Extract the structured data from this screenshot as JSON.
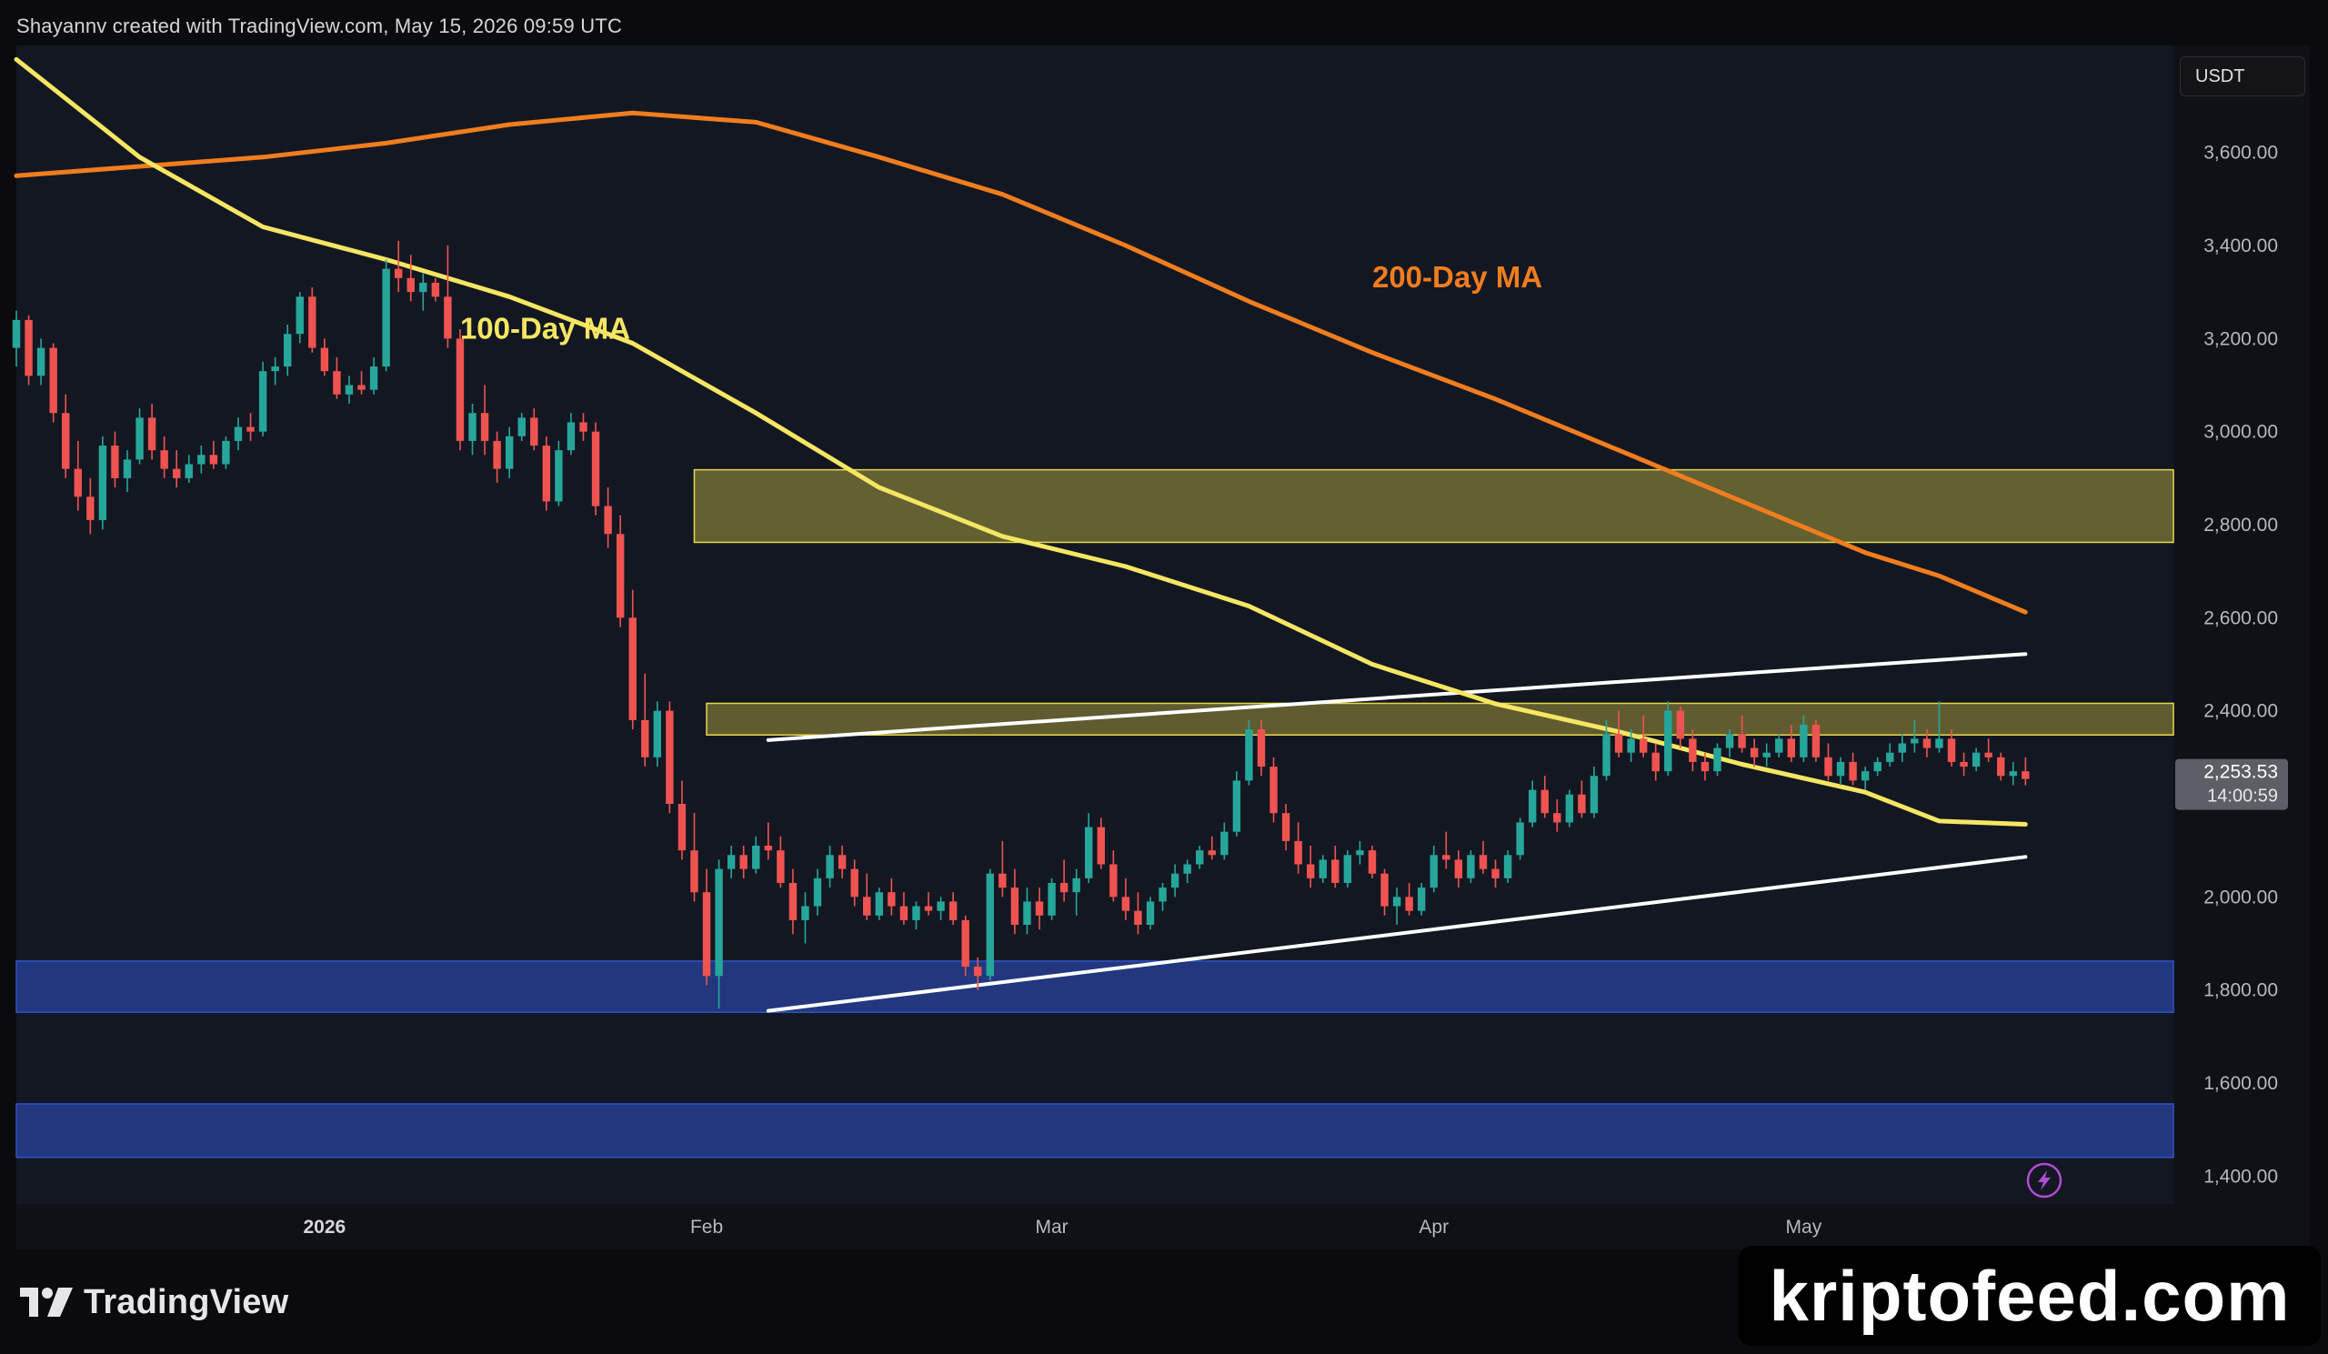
{
  "header": {
    "text": "Shayannv created with TradingView.com, May 15, 2026 09:59 UTC"
  },
  "currency": "USDT",
  "footer": {
    "brand": "TradingView"
  },
  "watermark": "kriptofeed.com",
  "colors": {
    "background": "#131722",
    "up": "#26a69a",
    "down": "#ef5350",
    "ma100": "#f5e663",
    "ma200": "#f07d1e",
    "supply_zone": "#e8d84a",
    "demand_zone": "#3052c9",
    "trendline": "#ffffff"
  },
  "chart_data": {
    "type": "candlestick",
    "instrument_currency": "USDT",
    "ylim": [
      1340,
      3830
    ],
    "x_range": [
      "2025-12-07",
      "2026-05-31"
    ],
    "y_ticks": [
      "3,600.00",
      "3,400.00",
      "3,200.00",
      "3,000.00",
      "2,800.00",
      "2,600.00",
      "2,400.00",
      "2,000.00",
      "1,800.00",
      "1,600.00",
      "1,400.00"
    ],
    "y_tick_values": [
      3600,
      3400,
      3200,
      3000,
      2800,
      2600,
      2400,
      2000,
      1800,
      1600,
      1400
    ],
    "x_ticks": [
      {
        "label": "2026",
        "date": "2026-01-01"
      },
      {
        "label": "Feb",
        "date": "2026-02-01"
      },
      {
        "label": "Mar",
        "date": "2026-03-01"
      },
      {
        "label": "Apr",
        "date": "2026-04-01"
      },
      {
        "label": "May",
        "date": "2026-05-01"
      }
    ],
    "last_price": {
      "label": "2,253.53",
      "value": 2253.53,
      "countdown": "14:00:59"
    },
    "annotations": [
      {
        "text": "100-Day MA",
        "color": "#f5e663",
        "date": "2026-01-12",
        "price": 3200
      },
      {
        "text": "200-Day MA",
        "color": "#f07d1e",
        "date": "2026-03-27",
        "price": 3310
      }
    ],
    "zones": [
      {
        "kind": "supply",
        "from": 2762,
        "to": 2918,
        "start": "2026-01-31"
      },
      {
        "kind": "resistance",
        "from": 2348,
        "to": 2416,
        "start": "2026-02-01"
      },
      {
        "kind": "demand",
        "from": 1752,
        "to": 1862,
        "start": "2025-12-07"
      },
      {
        "kind": "demand",
        "from": 1440,
        "to": 1555,
        "start": "2025-12-07"
      }
    ],
    "trendlines": [
      {
        "from": {
          "date": "2026-02-06",
          "price": 2337
        },
        "to": {
          "date": "2026-05-19",
          "price": 2522
        }
      },
      {
        "from": {
          "date": "2026-02-06",
          "price": 1755
        },
        "to": {
          "date": "2026-05-19",
          "price": 2086
        }
      }
    ],
    "ma100": [
      [
        "2025-12-07",
        3800
      ],
      [
        "2025-12-17",
        3590
      ],
      [
        "2025-12-27",
        3440
      ],
      [
        "2026-01-06",
        3370
      ],
      [
        "2026-01-16",
        3290
      ],
      [
        "2026-01-26",
        3190
      ],
      [
        "2026-02-05",
        3040
      ],
      [
        "2026-02-15",
        2880
      ],
      [
        "2026-02-25",
        2775
      ],
      [
        "2026-03-07",
        2710
      ],
      [
        "2026-03-17",
        2625
      ],
      [
        "2026-03-27",
        2500
      ],
      [
        "2026-04-06",
        2415
      ],
      [
        "2026-04-16",
        2355
      ],
      [
        "2026-04-26",
        2285
      ],
      [
        "2026-05-06",
        2225
      ],
      [
        "2026-05-12",
        2163
      ],
      [
        "2026-05-19",
        2156
      ]
    ],
    "ma200": [
      [
        "2025-12-07",
        3550
      ],
      [
        "2025-12-17",
        3570
      ],
      [
        "2025-12-27",
        3590
      ],
      [
        "2026-01-06",
        3620
      ],
      [
        "2026-01-16",
        3660
      ],
      [
        "2026-01-26",
        3685
      ],
      [
        "2026-02-05",
        3665
      ],
      [
        "2026-02-15",
        3590
      ],
      [
        "2026-02-25",
        3510
      ],
      [
        "2026-03-07",
        3400
      ],
      [
        "2026-03-17",
        3280
      ],
      [
        "2026-03-27",
        3170
      ],
      [
        "2026-04-06",
        3070
      ],
      [
        "2026-04-16",
        2960
      ],
      [
        "2026-04-26",
        2850
      ],
      [
        "2026-05-06",
        2740
      ],
      [
        "2026-05-12",
        2690
      ],
      [
        "2026-05-19",
        2612
      ]
    ],
    "candles": [
      [
        "2025-12-07",
        3180,
        3260,
        3140,
        3240
      ],
      [
        "2025-12-08",
        3240,
        3250,
        3100,
        3120
      ],
      [
        "2025-12-09",
        3120,
        3200,
        3100,
        3180
      ],
      [
        "2025-12-10",
        3180,
        3190,
        3020,
        3040
      ],
      [
        "2025-12-11",
        3040,
        3080,
        2900,
        2920
      ],
      [
        "2025-12-12",
        2920,
        2980,
        2830,
        2860
      ],
      [
        "2025-12-13",
        2860,
        2900,
        2780,
        2810
      ],
      [
        "2025-12-14",
        2810,
        2990,
        2790,
        2970
      ],
      [
        "2025-12-15",
        2970,
        3000,
        2880,
        2900
      ],
      [
        "2025-12-16",
        2900,
        2960,
        2870,
        2940
      ],
      [
        "2025-12-17",
        2940,
        3050,
        2930,
        3030
      ],
      [
        "2025-12-18",
        3030,
        3060,
        2940,
        2960
      ],
      [
        "2025-12-19",
        2960,
        2990,
        2900,
        2920
      ],
      [
        "2025-12-20",
        2920,
        2960,
        2880,
        2900
      ],
      [
        "2025-12-21",
        2900,
        2950,
        2890,
        2930
      ],
      [
        "2025-12-22",
        2930,
        2970,
        2910,
        2950
      ],
      [
        "2025-12-23",
        2950,
        2980,
        2920,
        2930
      ],
      [
        "2025-12-24",
        2930,
        2990,
        2920,
        2980
      ],
      [
        "2025-12-25",
        2980,
        3030,
        2960,
        3010
      ],
      [
        "2025-12-26",
        3010,
        3040,
        2980,
        3000
      ],
      [
        "2025-12-27",
        3000,
        3150,
        2990,
        3130
      ],
      [
        "2025-12-28",
        3130,
        3160,
        3100,
        3140
      ],
      [
        "2025-12-29",
        3140,
        3230,
        3120,
        3210
      ],
      [
        "2025-12-30",
        3210,
        3300,
        3190,
        3290
      ],
      [
        "2025-12-31",
        3290,
        3310,
        3170,
        3180
      ],
      [
        "2026-01-01",
        3180,
        3200,
        3120,
        3130
      ],
      [
        "2026-01-02",
        3130,
        3160,
        3070,
        3080
      ],
      [
        "2026-01-03",
        3080,
        3120,
        3060,
        3100
      ],
      [
        "2026-01-04",
        3100,
        3130,
        3080,
        3090
      ],
      [
        "2026-01-05",
        3090,
        3160,
        3080,
        3140
      ],
      [
        "2026-01-06",
        3140,
        3370,
        3130,
        3350
      ],
      [
        "2026-01-07",
        3350,
        3410,
        3300,
        3330
      ],
      [
        "2026-01-08",
        3330,
        3380,
        3280,
        3300
      ],
      [
        "2026-01-09",
        3300,
        3340,
        3260,
        3320
      ],
      [
        "2026-01-10",
        3320,
        3330,
        3280,
        3290
      ],
      [
        "2026-01-11",
        3290,
        3400,
        3180,
        3200
      ],
      [
        "2026-01-12",
        3200,
        3220,
        2960,
        2980
      ],
      [
        "2026-01-13",
        2980,
        3060,
        2950,
        3040
      ],
      [
        "2026-01-14",
        3040,
        3100,
        2950,
        2980
      ],
      [
        "2026-01-15",
        2980,
        3000,
        2890,
        2920
      ],
      [
        "2026-01-16",
        2920,
        3010,
        2900,
        2990
      ],
      [
        "2026-01-17",
        2990,
        3040,
        2980,
        3030
      ],
      [
        "2026-01-18",
        3030,
        3050,
        2960,
        2970
      ],
      [
        "2026-01-19",
        2970,
        2990,
        2830,
        2850
      ],
      [
        "2026-01-20",
        2850,
        2980,
        2840,
        2960
      ],
      [
        "2026-01-21",
        2960,
        3040,
        2950,
        3020
      ],
      [
        "2026-01-22",
        3020,
        3040,
        2980,
        3000
      ],
      [
        "2026-01-23",
        3000,
        3020,
        2820,
        2840
      ],
      [
        "2026-01-24",
        2840,
        2880,
        2750,
        2780
      ],
      [
        "2026-01-25",
        2780,
        2820,
        2580,
        2600
      ],
      [
        "2026-01-26",
        2600,
        2660,
        2360,
        2380
      ],
      [
        "2026-01-27",
        2380,
        2480,
        2280,
        2300
      ],
      [
        "2026-01-28",
        2300,
        2420,
        2280,
        2400
      ],
      [
        "2026-01-29",
        2400,
        2420,
        2180,
        2200
      ],
      [
        "2026-01-30",
        2200,
        2250,
        2080,
        2100
      ],
      [
        "2026-01-31",
        2100,
        2180,
        1990,
        2010
      ],
      [
        "2026-02-01",
        2010,
        2060,
        1810,
        1830
      ],
      [
        "2026-02-02",
        1830,
        2080,
        1760,
        2060
      ],
      [
        "2026-02-03",
        2060,
        2110,
        2040,
        2090
      ],
      [
        "2026-02-04",
        2090,
        2110,
        2040,
        2060
      ],
      [
        "2026-02-05",
        2060,
        2130,
        2050,
        2110
      ],
      [
        "2026-02-06",
        2110,
        2160,
        2080,
        2100
      ],
      [
        "2026-02-07",
        2100,
        2130,
        2020,
        2030
      ],
      [
        "2026-02-08",
        2030,
        2060,
        1920,
        1950
      ],
      [
        "2026-02-09",
        1950,
        2010,
        1900,
        1980
      ],
      [
        "2026-02-10",
        1980,
        2060,
        1960,
        2040
      ],
      [
        "2026-02-11",
        2040,
        2110,
        2020,
        2090
      ],
      [
        "2026-02-12",
        2090,
        2110,
        2040,
        2060
      ],
      [
        "2026-02-13",
        2060,
        2080,
        1980,
        2000
      ],
      [
        "2026-02-14",
        2000,
        2050,
        1950,
        1960
      ],
      [
        "2026-02-15",
        1960,
        2020,
        1950,
        2010
      ],
      [
        "2026-02-16",
        2010,
        2040,
        1960,
        1980
      ],
      [
        "2026-02-17",
        1980,
        2010,
        1940,
        1950
      ],
      [
        "2026-02-18",
        1950,
        1990,
        1930,
        1980
      ],
      [
        "2026-02-19",
        1980,
        2010,
        1960,
        1970
      ],
      [
        "2026-02-20",
        1970,
        2000,
        1950,
        1990
      ],
      [
        "2026-02-21",
        1990,
        2010,
        1940,
        1950
      ],
      [
        "2026-02-22",
        1950,
        1960,
        1830,
        1850
      ],
      [
        "2026-02-23",
        1850,
        1870,
        1800,
        1830
      ],
      [
        "2026-02-24",
        1830,
        2060,
        1820,
        2050
      ],
      [
        "2026-02-25",
        2050,
        2120,
        2000,
        2020
      ],
      [
        "2026-02-26",
        2020,
        2060,
        1920,
        1940
      ],
      [
        "2026-02-27",
        1940,
        2020,
        1920,
        1990
      ],
      [
        "2026-02-28",
        1990,
        2020,
        1930,
        1960
      ],
      [
        "2026-03-01",
        1960,
        2040,
        1950,
        2030
      ],
      [
        "2026-03-02",
        2030,
        2080,
        1990,
        2010
      ],
      [
        "2026-03-03",
        2010,
        2060,
        1960,
        2040
      ],
      [
        "2026-03-04",
        2040,
        2180,
        2030,
        2150
      ],
      [
        "2026-03-05",
        2150,
        2170,
        2060,
        2070
      ],
      [
        "2026-03-06",
        2070,
        2100,
        1990,
        2000
      ],
      [
        "2026-03-07",
        2000,
        2040,
        1950,
        1970
      ],
      [
        "2026-03-08",
        1970,
        2010,
        1920,
        1940
      ],
      [
        "2026-03-09",
        1940,
        2000,
        1930,
        1990
      ],
      [
        "2026-03-10",
        1990,
        2030,
        1970,
        2020
      ],
      [
        "2026-03-11",
        2020,
        2070,
        2000,
        2050
      ],
      [
        "2026-03-12",
        2050,
        2080,
        2030,
        2070
      ],
      [
        "2026-03-13",
        2070,
        2110,
        2060,
        2100
      ],
      [
        "2026-03-14",
        2100,
        2130,
        2080,
        2090
      ],
      [
        "2026-03-15",
        2090,
        2160,
        2080,
        2140
      ],
      [
        "2026-03-16",
        2140,
        2270,
        2130,
        2250
      ],
      [
        "2026-03-17",
        2250,
        2380,
        2240,
        2360
      ],
      [
        "2026-03-18",
        2360,
        2380,
        2260,
        2280
      ],
      [
        "2026-03-19",
        2280,
        2300,
        2160,
        2180
      ],
      [
        "2026-03-20",
        2180,
        2200,
        2100,
        2120
      ],
      [
        "2026-03-21",
        2120,
        2160,
        2050,
        2070
      ],
      [
        "2026-03-22",
        2070,
        2110,
        2020,
        2040
      ],
      [
        "2026-03-23",
        2040,
        2090,
        2030,
        2080
      ],
      [
        "2026-03-24",
        2080,
        2110,
        2020,
        2030
      ],
      [
        "2026-03-25",
        2030,
        2100,
        2020,
        2090
      ],
      [
        "2026-03-26",
        2090,
        2120,
        2070,
        2100
      ],
      [
        "2026-03-27",
        2100,
        2110,
        2040,
        2050
      ],
      [
        "2026-03-28",
        2050,
        2060,
        1960,
        1980
      ],
      [
        "2026-03-29",
        1980,
        2020,
        1940,
        2000
      ],
      [
        "2026-03-30",
        2000,
        2030,
        1960,
        1970
      ],
      [
        "2026-03-31",
        1970,
        2030,
        1960,
        2020
      ],
      [
        "2026-04-01",
        2020,
        2110,
        2010,
        2090
      ],
      [
        "2026-04-02",
        2090,
        2140,
        2060,
        2080
      ],
      [
        "2026-04-03",
        2080,
        2100,
        2020,
        2040
      ],
      [
        "2026-04-04",
        2040,
        2100,
        2030,
        2090
      ],
      [
        "2026-04-05",
        2090,
        2120,
        2050,
        2060
      ],
      [
        "2026-04-06",
        2060,
        2080,
        2020,
        2040
      ],
      [
        "2026-04-07",
        2040,
        2100,
        2030,
        2090
      ],
      [
        "2026-04-08",
        2090,
        2170,
        2080,
        2160
      ],
      [
        "2026-04-09",
        2160,
        2250,
        2150,
        2230
      ],
      [
        "2026-04-10",
        2230,
        2260,
        2170,
        2180
      ],
      [
        "2026-04-11",
        2180,
        2210,
        2140,
        2160
      ],
      [
        "2026-04-12",
        2160,
        2230,
        2150,
        2220
      ],
      [
        "2026-04-13",
        2220,
        2250,
        2170,
        2180
      ],
      [
        "2026-04-14",
        2180,
        2280,
        2170,
        2260
      ],
      [
        "2026-04-15",
        2260,
        2380,
        2250,
        2350
      ],
      [
        "2026-04-16",
        2350,
        2400,
        2300,
        2310
      ],
      [
        "2026-04-17",
        2310,
        2360,
        2290,
        2340
      ],
      [
        "2026-04-18",
        2340,
        2390,
        2300,
        2310
      ],
      [
        "2026-04-19",
        2310,
        2330,
        2250,
        2270
      ],
      [
        "2026-04-20",
        2270,
        2420,
        2260,
        2400
      ],
      [
        "2026-04-21",
        2400,
        2410,
        2320,
        2340
      ],
      [
        "2026-04-22",
        2340,
        2360,
        2270,
        2290
      ],
      [
        "2026-04-23",
        2290,
        2310,
        2250,
        2270
      ],
      [
        "2026-04-24",
        2270,
        2330,
        2260,
        2320
      ],
      [
        "2026-04-25",
        2320,
        2360,
        2300,
        2350
      ],
      [
        "2026-04-26",
        2350,
        2390,
        2310,
        2320
      ],
      [
        "2026-04-27",
        2320,
        2340,
        2280,
        2300
      ],
      [
        "2026-04-28",
        2300,
        2330,
        2280,
        2310
      ],
      [
        "2026-04-29",
        2310,
        2350,
        2300,
        2340
      ],
      [
        "2026-04-30",
        2340,
        2370,
        2290,
        2300
      ],
      [
        "2026-05-01",
        2300,
        2390,
        2290,
        2370
      ],
      [
        "2026-05-02",
        2370,
        2380,
        2290,
        2300
      ],
      [
        "2026-05-03",
        2300,
        2330,
        2250,
        2260
      ],
      [
        "2026-05-04",
        2260,
        2300,
        2240,
        2290
      ],
      [
        "2026-05-05",
        2290,
        2310,
        2240,
        2250
      ],
      [
        "2026-05-06",
        2250,
        2280,
        2230,
        2270
      ],
      [
        "2026-05-07",
        2270,
        2300,
        2260,
        2290
      ],
      [
        "2026-05-08",
        2290,
        2330,
        2280,
        2310
      ],
      [
        "2026-05-09",
        2310,
        2350,
        2290,
        2330
      ],
      [
        "2026-05-10",
        2330,
        2380,
        2310,
        2340
      ],
      [
        "2026-05-11",
        2340,
        2360,
        2300,
        2320
      ],
      [
        "2026-05-12",
        2320,
        2420,
        2310,
        2340
      ],
      [
        "2026-05-13",
        2340,
        2360,
        2280,
        2290
      ],
      [
        "2026-05-14",
        2290,
        2310,
        2260,
        2280
      ],
      [
        "2026-05-15",
        2280,
        2320,
        2270,
        2310
      ],
      [
        "2026-05-16",
        2310,
        2340,
        2290,
        2300
      ],
      [
        "2026-05-17",
        2300,
        2310,
        2250,
        2260
      ],
      [
        "2026-05-18",
        2260,
        2290,
        2240,
        2270
      ],
      [
        "2026-05-19",
        2270,
        2300,
        2240,
        2253.53
      ]
    ]
  }
}
